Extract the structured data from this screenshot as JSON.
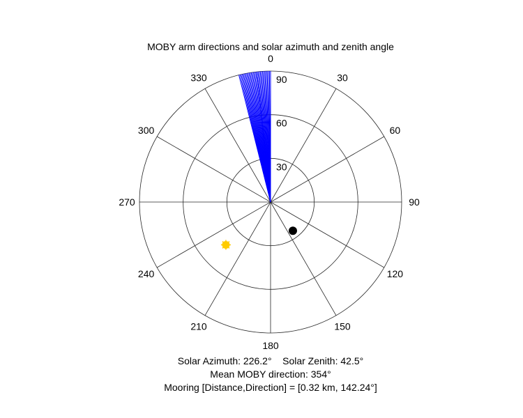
{
  "chart_data": {
    "type": "polar",
    "title": "MOBY arm directions and solar azimuth and zenith angle",
    "theta_direction": "clockwise",
    "theta_zero": "top",
    "angle_ticks": [
      "0",
      "30",
      "60",
      "90",
      "120",
      "150",
      "180",
      "210",
      "240",
      "270",
      "300",
      "330"
    ],
    "angle_tick_values": [
      0,
      30,
      60,
      90,
      120,
      150,
      180,
      210,
      240,
      270,
      300,
      330
    ],
    "radius_ticks": [
      "30",
      "60",
      "90"
    ],
    "radius_tick_values": [
      30,
      60,
      90
    ],
    "rlim": [
      0,
      90
    ],
    "grid": true,
    "moby_arm_directions_deg": [
      346,
      346.5,
      347,
      347.5,
      348,
      348.5,
      349,
      349.5,
      350,
      350.5,
      351,
      351.5,
      352,
      352.5,
      353,
      353.5,
      354,
      354,
      354.5,
      355,
      355.5,
      356,
      356.5,
      357,
      357.5,
      358,
      358.5,
      359,
      359.5,
      0
    ],
    "moby_arm_radius": 90,
    "moby_arm_color": "#0000ff",
    "sun_marker": {
      "azimuth": 226.2,
      "zenith": 42.5,
      "color": "#ffcc00"
    },
    "mooring_marker": {
      "direction": 142.24,
      "radius": 25,
      "color": "#000000"
    },
    "annotations": [
      "Solar Azimuth: 226.2°    Solar Zenith: 42.5°",
      "Mean MOBY direction: 354°",
      "Mooring [Distance,Direction] = [0.32 km, 142.24°]"
    ]
  }
}
